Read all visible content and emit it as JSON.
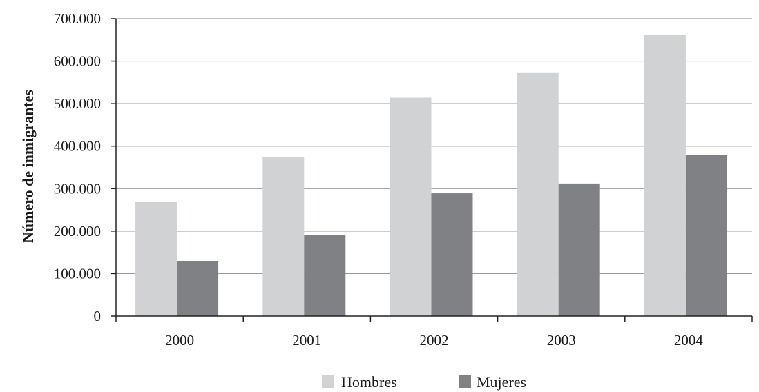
{
  "chart_data": {
    "type": "bar",
    "title": "",
    "xlabel": "",
    "ylabel": "Número de inmigrantes",
    "categories": [
      "2000",
      "2001",
      "2002",
      "2003",
      "2004"
    ],
    "series": [
      {
        "name": "Hombres",
        "values": [
          268000,
          374000,
          514000,
          572000,
          661000
        ]
      },
      {
        "name": "Mujeres",
        "values": [
          130000,
          190000,
          289000,
          312000,
          380000
        ]
      }
    ],
    "ylim": [
      0,
      700000
    ],
    "yticks": [
      0,
      100000,
      200000,
      300000,
      400000,
      500000,
      600000,
      700000
    ],
    "ytick_labels": [
      "0",
      "100.000",
      "200.000",
      "300.000",
      "400.000",
      "500.000",
      "600.000",
      "700.000"
    ],
    "grid": true,
    "legend_position": "bottom-center",
    "colors": {
      "Hombres": "#d1d2d4",
      "Mujeres": "#808184",
      "gridline": "#9a9a9a",
      "axis": "#222222"
    }
  }
}
